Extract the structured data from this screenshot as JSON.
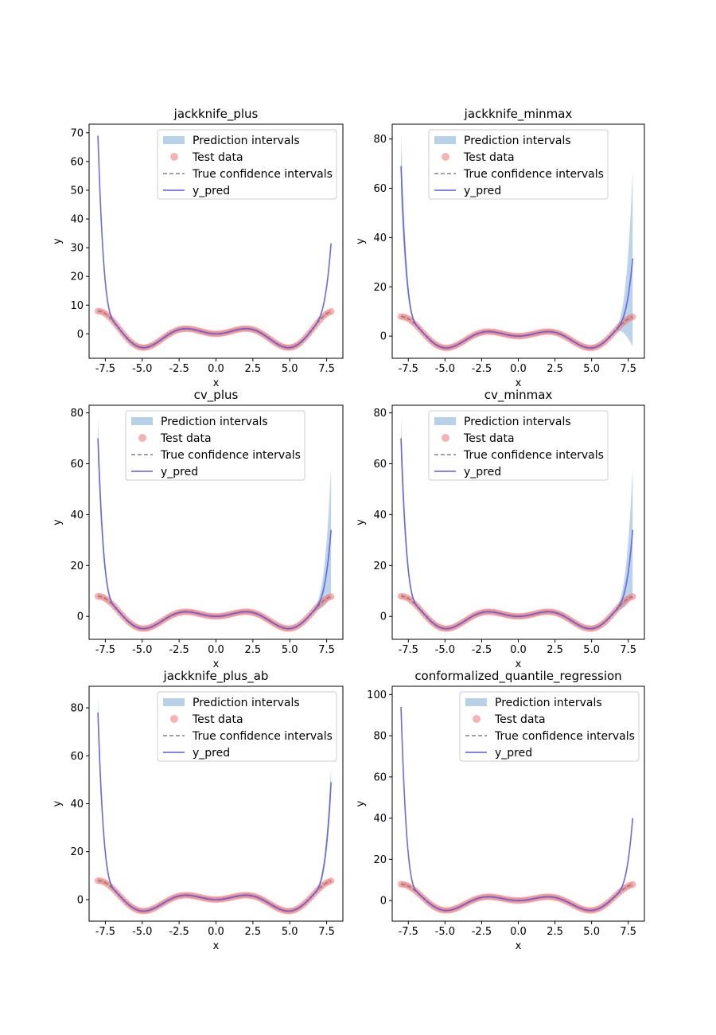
{
  "chart_data": [
    {
      "type": "line",
      "title": "jackknife_plus",
      "xlabel": "x",
      "ylabel": "y",
      "xlim": [
        -8.6,
        8.6
      ],
      "ylim": [
        -8.5,
        73
      ],
      "xticks": [
        "-7.5",
        "-5.0",
        "-2.5",
        "0.0",
        "2.5",
        "5.0",
        "7.5"
      ],
      "yticks": [
        "0",
        "10",
        "20",
        "30",
        "40",
        "50",
        "60",
        "70"
      ],
      "legend_position": "upper-right",
      "legend": [
        "Prediction intervals",
        "Test data",
        "True confidence intervals",
        "y_pred"
      ],
      "y_pred_endpoints": [
        69,
        31.5
      ],
      "interval_halfwidth_endpoints": [
        0,
        0
      ]
    },
    {
      "type": "line",
      "title": "jackknife_minmax",
      "xlabel": "x",
      "ylabel": "y",
      "xlim": [
        -8.6,
        8.6
      ],
      "ylim": [
        -9,
        86
      ],
      "xticks": [
        "-7.5",
        "-5.0",
        "-2.5",
        "0.0",
        "2.5",
        "5.0",
        "7.5"
      ],
      "yticks": [
        "0",
        "20",
        "40",
        "60",
        "80"
      ],
      "legend_position": "upper-center",
      "legend": [
        "Prediction intervals",
        "Test data",
        "True confidence intervals",
        "y_pred"
      ],
      "y_pred_endpoints": [
        69,
        31.5
      ],
      "interval_halfwidth_endpoints": [
        12,
        35
      ]
    },
    {
      "type": "line",
      "title": "cv_plus",
      "xlabel": "x",
      "ylabel": "y",
      "xlim": [
        -8.6,
        8.6
      ],
      "ylim": [
        -9,
        83
      ],
      "xticks": [
        "-7.5",
        "-5.0",
        "-2.5",
        "0.0",
        "2.5",
        "5.0",
        "7.5"
      ],
      "yticks": [
        "0",
        "20",
        "40",
        "60",
        "80"
      ],
      "legend_position": "upper-center",
      "legend": [
        "Prediction intervals",
        "Test data",
        "True confidence intervals",
        "y_pred"
      ],
      "y_pred_endpoints": [
        70,
        34
      ],
      "interval_halfwidth_endpoints": [
        8,
        24
      ]
    },
    {
      "type": "line",
      "title": "cv_minmax",
      "xlabel": "x",
      "ylabel": "y",
      "xlim": [
        -8.6,
        8.6
      ],
      "ylim": [
        -9,
        83
      ],
      "xticks": [
        "-7.5",
        "-5.0",
        "-2.5",
        "0.0",
        "2.5",
        "5.0",
        "7.5"
      ],
      "yticks": [
        "0",
        "20",
        "40",
        "60",
        "80"
      ],
      "legend_position": "upper-center",
      "legend": [
        "Prediction intervals",
        "Test data",
        "True confidence intervals",
        "y_pred"
      ],
      "y_pred_endpoints": [
        70,
        34
      ],
      "interval_halfwidth_endpoints": [
        8,
        24
      ]
    },
    {
      "type": "line",
      "title": "jackknife_plus_ab",
      "xlabel": "x",
      "ylabel": "y",
      "xlim": [
        -8.6,
        8.6
      ],
      "ylim": [
        -9,
        89
      ],
      "xticks": [
        "-7.5",
        "-5.0",
        "-2.5",
        "0.0",
        "2.5",
        "5.0",
        "7.5"
      ],
      "yticks": [
        "0",
        "20",
        "40",
        "60",
        "80"
      ],
      "legend_position": "upper-right",
      "legend": [
        "Prediction intervals",
        "Test data",
        "True confidence intervals",
        "y_pred"
      ],
      "y_pred_endpoints": [
        78,
        49
      ],
      "interval_halfwidth_endpoints": [
        6,
        6
      ]
    },
    {
      "type": "line",
      "title": "conformalized_quantile_regression",
      "xlabel": "x",
      "ylabel": "y",
      "xlim": [
        -8.6,
        8.6
      ],
      "ylim": [
        -10,
        104
      ],
      "xticks": [
        "-7.5",
        "-5.0",
        "-2.5",
        "0.0",
        "2.5",
        "5.0",
        "7.5"
      ],
      "yticks": [
        "0",
        "20",
        "40",
        "60",
        "80",
        "100"
      ],
      "legend_position": "upper-right",
      "legend": [
        "Prediction intervals",
        "Test data",
        "True confidence intervals",
        "y_pred"
      ],
      "y_pred_endpoints": [
        94,
        40
      ],
      "interval_halfwidth_endpoints": [
        0,
        0
      ]
    }
  ],
  "colors": {
    "interval_fill": "#b7d2e8",
    "test_points": "#f08080",
    "true_ci": "#808080",
    "y_pred": "#5b5bea"
  }
}
